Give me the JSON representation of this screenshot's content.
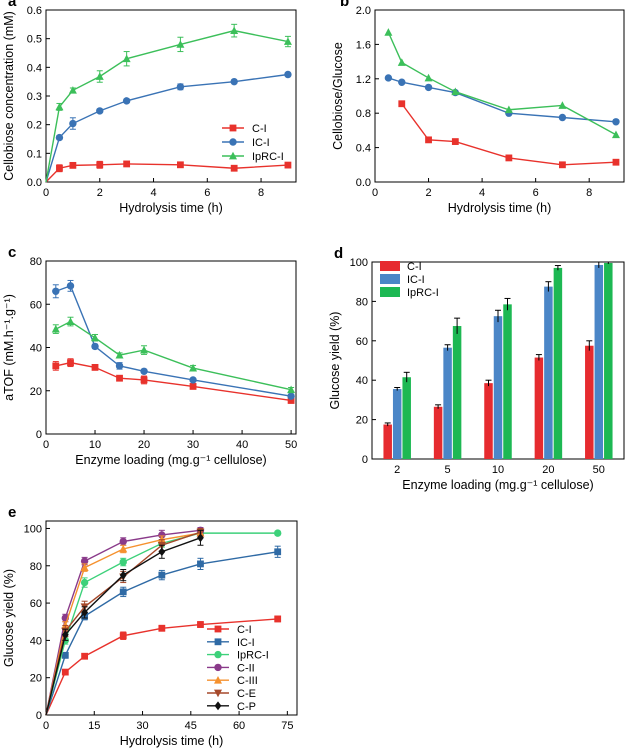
{
  "chart_data": [
    {
      "panel": "a",
      "type": "line",
      "xlabel": "Hydrolysis time (h)",
      "ylabel": "Cellobiose concentration (mM)",
      "xlim": [
        0,
        9.3
      ],
      "ylim": [
        0,
        0.6
      ],
      "xticks": [
        0,
        2,
        4,
        6,
        8
      ],
      "yticks": [
        0.0,
        0.1,
        0.2,
        0.3,
        0.4,
        0.5,
        0.6
      ],
      "xtick_labels": [
        "0",
        "2",
        "4",
        "6",
        "8"
      ],
      "ytick_labels": [
        "0.0",
        "0.1",
        "0.2",
        "0.3",
        "0.4",
        "0.5",
        "0.6"
      ],
      "legend_position": "center-right",
      "series": [
        {
          "name": "C-I",
          "color": "#e8322c",
          "marker": "square",
          "x": [
            0,
            0.5,
            1,
            2,
            3,
            5,
            7,
            9
          ],
          "y": [
            0,
            0.048,
            0.058,
            0.06,
            0.063,
            0.06,
            0.048,
            0.059
          ],
          "err": [
            0,
            0.012,
            0.006,
            0.012,
            0.008,
            0.006,
            0.005,
            0.006
          ]
        },
        {
          "name": "IC-I",
          "color": "#3a73b5",
          "marker": "circle",
          "x": [
            0,
            0.5,
            1,
            2,
            3,
            5,
            7,
            9
          ],
          "y": [
            0,
            0.155,
            0.204,
            0.248,
            0.283,
            0.332,
            0.35,
            0.375
          ],
          "err": [
            0,
            0.007,
            0.02,
            0.006,
            0.006,
            0.01,
            0.005,
            0.006
          ]
        },
        {
          "name": "IpRC-I",
          "color": "#3cbf5a",
          "marker": "triangle",
          "x": [
            0,
            0.5,
            1,
            2,
            3,
            5,
            7,
            9
          ],
          "y": [
            0,
            0.262,
            0.32,
            0.368,
            0.43,
            0.48,
            0.528,
            0.49
          ],
          "err": [
            0,
            0.012,
            0.008,
            0.02,
            0.025,
            0.025,
            0.022,
            0.018
          ]
        }
      ]
    },
    {
      "panel": "b",
      "type": "line",
      "xlabel": "Hydrolysis time (h)",
      "ylabel": "Cellobiose/Glucose",
      "xlim": [
        0,
        9.3
      ],
      "ylim": [
        0,
        2.0
      ],
      "xticks": [
        0,
        2,
        4,
        6,
        8
      ],
      "yticks": [
        0.0,
        0.4,
        0.8,
        1.2,
        1.6,
        2.0
      ],
      "xtick_labels": [
        "0",
        "2",
        "4",
        "6",
        "8"
      ],
      "ytick_labels": [
        "0.0",
        "0.4",
        "0.8",
        "1.2",
        "1.6",
        "2.0"
      ],
      "series": [
        {
          "name": "C-I",
          "color": "#e8322c",
          "marker": "square",
          "x": [
            1,
            2,
            3,
            5,
            7,
            9
          ],
          "y": [
            0.91,
            0.49,
            0.47,
            0.28,
            0.2,
            0.23
          ]
        },
        {
          "name": "IC-I",
          "color": "#3a73b5",
          "marker": "circle",
          "x": [
            0.5,
            1,
            2,
            3,
            5,
            7,
            9
          ],
          "y": [
            1.21,
            1.16,
            1.1,
            1.04,
            0.8,
            0.75,
            0.7
          ]
        },
        {
          "name": "IpRC-I",
          "color": "#3cbf5a",
          "marker": "triangle",
          "x": [
            0.5,
            1,
            2,
            3,
            5,
            7,
            9
          ],
          "y": [
            1.74,
            1.39,
            1.21,
            1.05,
            0.84,
            0.89,
            0.55
          ]
        }
      ]
    },
    {
      "panel": "c",
      "type": "line",
      "xlabel": "Enzyme loading (mg.g⁻¹ cellulose)",
      "ylabel": "aTOF (mM.h⁻¹.g⁻¹)",
      "xlim": [
        0,
        51
      ],
      "ylim": [
        0,
        80
      ],
      "xticks": [
        0,
        10,
        20,
        30,
        40,
        50
      ],
      "yticks": [
        0,
        20,
        40,
        60,
        80
      ],
      "xtick_labels": [
        "0",
        "10",
        "20",
        "30",
        "40",
        "50"
      ],
      "ytick_labels": [
        "0",
        "20",
        "40",
        "60",
        "80"
      ],
      "series": [
        {
          "name": "C-I",
          "color": "#e8322c",
          "marker": "square",
          "x": [
            2,
            5,
            10,
            15,
            20,
            30,
            50
          ],
          "y": [
            31.5,
            33,
            30.8,
            25.8,
            25,
            22,
            15.5
          ],
          "err": [
            2,
            1.8,
            0.8,
            1,
            1.8,
            0.8,
            1.2
          ]
        },
        {
          "name": "IC-I",
          "color": "#3a73b5",
          "marker": "circle",
          "x": [
            2,
            5,
            10,
            15,
            20,
            30,
            50
          ],
          "y": [
            66,
            68.5,
            40.5,
            31.5,
            29,
            25,
            17.5
          ],
          "err": [
            3,
            2.5,
            1,
            1.5,
            0.8,
            0.8,
            0.8
          ]
        },
        {
          "name": "IpRC-I",
          "color": "#3cbf5a",
          "marker": "triangle",
          "x": [
            2,
            5,
            10,
            15,
            20,
            30,
            50
          ],
          "y": [
            48.5,
            52,
            44.5,
            36.5,
            38.8,
            30.5,
            20.5
          ],
          "err": [
            2,
            2,
            1.5,
            1,
            2,
            1.2,
            1
          ]
        }
      ]
    },
    {
      "panel": "d",
      "type": "bar",
      "xlabel": "Enzyme loading (mg.g⁻¹ cellulose)",
      "ylabel": "Glucose yield (%)",
      "categories": [
        "2",
        "5",
        "10",
        "20",
        "50"
      ],
      "ylim": [
        0,
        100
      ],
      "yticks": [
        0,
        20,
        40,
        60,
        80,
        100
      ],
      "ytick_labels": [
        "0",
        "20",
        "40",
        "60",
        "80",
        "100"
      ],
      "legend_position": "top-left",
      "series": [
        {
          "name": "C-I",
          "color": "#e62b2f",
          "values": [
            17.5,
            26.5,
            38.5,
            51.5,
            57.5
          ],
          "err": [
            0.8,
            1,
            1.5,
            1.5,
            2.5
          ]
        },
        {
          "name": "IC-I",
          "color": "#4b86c7",
          "values": [
            35.5,
            56.5,
            72.5,
            87.5,
            98.5
          ],
          "err": [
            0.8,
            1.5,
            3,
            2.5,
            1.5
          ]
        },
        {
          "name": "IpRC-I",
          "color": "#1db853",
          "values": [
            41.5,
            67.5,
            78.5,
            97,
            99.5
          ],
          "err": [
            2.5,
            4,
            3,
            1.2,
            0.5
          ]
        }
      ]
    },
    {
      "panel": "e",
      "type": "line",
      "xlabel": "Hydrolysis time (h)",
      "ylabel": "Glucose yield (%)",
      "xlim": [
        0,
        78
      ],
      "ylim": [
        0,
        104
      ],
      "xticks": [
        0,
        15,
        30,
        45,
        60,
        75
      ],
      "yticks": [
        0,
        20,
        40,
        60,
        80,
        100
      ],
      "xtick_labels": [
        "0",
        "15",
        "30",
        "45",
        "60",
        "75"
      ],
      "ytick_labels": [
        "0",
        "20",
        "40",
        "60",
        "80",
        "100"
      ],
      "legend_position": "bottom-right",
      "series": [
        {
          "name": "C-I",
          "color": "#e8322c",
          "marker": "square",
          "x": [
            0,
            6,
            12,
            24,
            36,
            48,
            72
          ],
          "y": [
            0,
            23,
            31.5,
            42.5,
            46.5,
            48.5,
            51.5
          ],
          "err": [
            0,
            1,
            1,
            2,
            1.5,
            1.5,
            1.5
          ]
        },
        {
          "name": "IC-I",
          "color": "#2f6aa5",
          "marker": "square",
          "x": [
            0,
            6,
            12,
            24,
            36,
            48,
            72
          ],
          "y": [
            0,
            32,
            53,
            66,
            75,
            81,
            87.5
          ],
          "err": [
            0,
            1.5,
            2,
            2.5,
            2.5,
            3,
            3
          ]
        },
        {
          "name": "IpRC-I",
          "color": "#3dd17a",
          "marker": "circle",
          "x": [
            0,
            6,
            12,
            24,
            36,
            48,
            72
          ],
          "y": [
            0,
            40,
            71,
            82,
            92,
            97.5,
            97.5
          ],
          "err": [
            0,
            2,
            2.5,
            2,
            2,
            1.5,
            1
          ]
        },
        {
          "name": "C-II",
          "color": "#8a3a8a",
          "marker": "circle",
          "x": [
            0,
            6,
            12,
            24,
            36,
            48
          ],
          "y": [
            0,
            52,
            82.5,
            93,
            96.5,
            99
          ],
          "err": [
            0,
            2,
            2,
            2,
            2.5,
            1.5
          ]
        },
        {
          "name": "C-III",
          "color": "#f5912e",
          "marker": "triangle",
          "x": [
            0,
            6,
            12,
            24,
            36,
            48
          ],
          "y": [
            0,
            48,
            79,
            89,
            94,
            97.5
          ],
          "err": [
            0,
            2,
            2,
            2,
            2,
            2
          ]
        },
        {
          "name": "C-E",
          "color": "#a6492b",
          "marker": "triangle-down",
          "x": [
            0,
            6,
            12,
            24,
            36,
            48
          ],
          "y": [
            0,
            45,
            58,
            74,
            91,
            98
          ],
          "err": [
            0,
            3,
            3,
            3,
            3,
            2
          ]
        },
        {
          "name": "C-P",
          "color": "#111111",
          "marker": "diamond",
          "x": [
            0,
            6,
            12,
            24,
            36,
            48
          ],
          "y": [
            0,
            43,
            55,
            75,
            87.5,
            95
          ],
          "err": [
            0,
            3,
            3,
            3,
            3.5,
            4
          ]
        }
      ]
    }
  ]
}
